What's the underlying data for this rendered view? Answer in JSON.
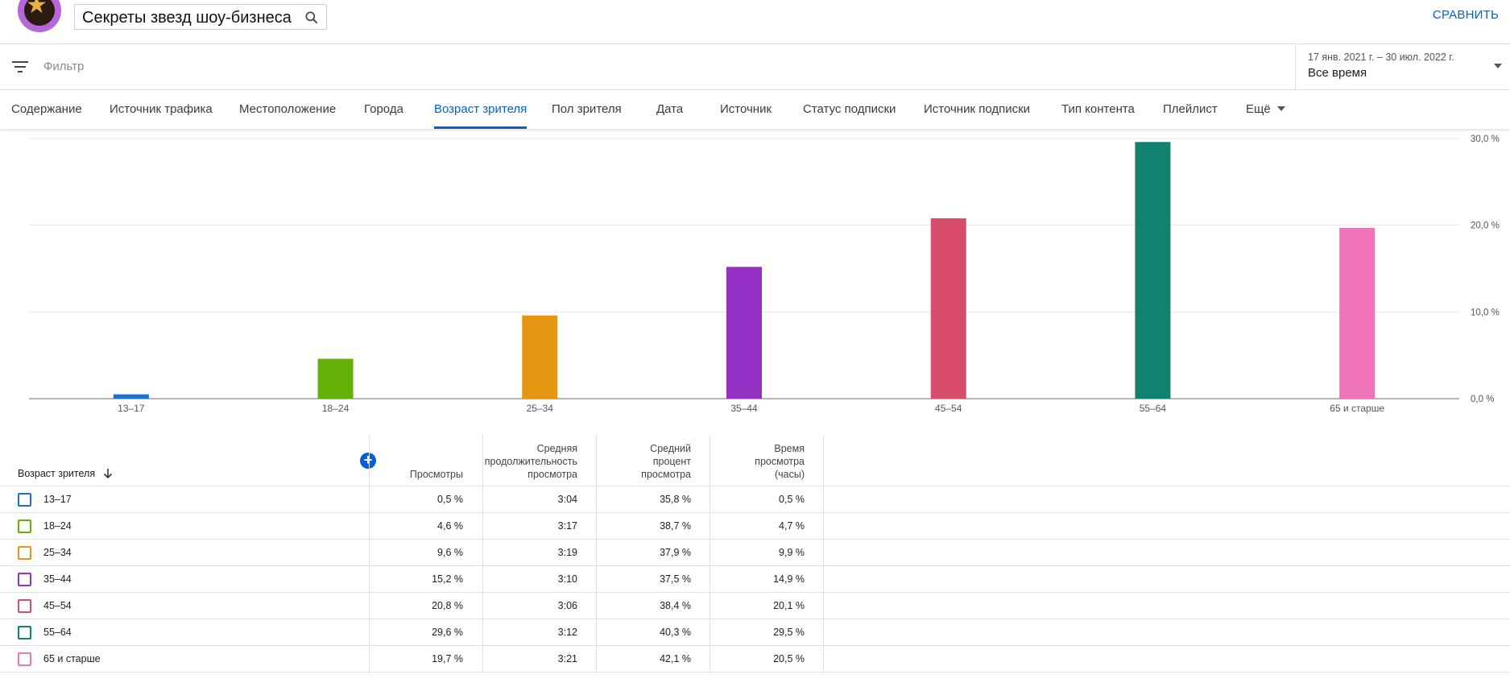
{
  "header": {
    "channel_name": "Секреты звезд шоу-бизнеса",
    "compare_label": "СРАВНИТЬ"
  },
  "filter": {
    "placeholder": "Фильтр",
    "date_range": "17 янв. 2021 г. – 30 июл. 2022 г.",
    "period": "Все время"
  },
  "tabs": [
    {
      "label": "Содержание"
    },
    {
      "label": "Источник трафика"
    },
    {
      "label": "Местоположение"
    },
    {
      "label": "Города"
    },
    {
      "label": "Возраст зрителя",
      "active": true
    },
    {
      "label": "Пол зрителя"
    },
    {
      "label": "Дата"
    },
    {
      "label": "Источник"
    },
    {
      "label": "Статус подписки"
    },
    {
      "label": "Источник подписки"
    },
    {
      "label": "Тип контента"
    },
    {
      "label": "Плейлист"
    },
    {
      "label": "Ещё"
    }
  ],
  "chart_data": {
    "type": "bar",
    "categories": [
      "13–17",
      "18–24",
      "25–34",
      "35–44",
      "45–54",
      "55–64",
      "65 и старше"
    ],
    "values": [
      0.5,
      4.6,
      9.6,
      15.2,
      20.8,
      29.6,
      19.7
    ],
    "colors": [
      "#1e6fd0",
      "#64b006",
      "#e59612",
      "#9431c4",
      "#d84c6e",
      "#128270",
      "#f173b9"
    ],
    "yticks": [
      "0,0 %",
      "10,0 %",
      "20,0 %",
      "30,0 %"
    ],
    "ylim": [
      0,
      30
    ],
    "grid": true
  },
  "table": {
    "dimension_header": "Возраст зрителя",
    "headers": [
      [
        "Просмотры"
      ],
      [
        "Средняя",
        "продолжительность",
        "просмотра"
      ],
      [
        "Средний",
        "процент",
        "просмотра"
      ],
      [
        "Время",
        "просмотра",
        "(часы)"
      ]
    ],
    "rows": [
      {
        "label": "13–17",
        "color": "#1e6fd0",
        "views": "0,5 %",
        "avg_duration": "3:04",
        "avg_percent": "35,8 %",
        "watch_time": "0,5 %"
      },
      {
        "label": "18–24",
        "color": "#64b006",
        "views": "4,6 %",
        "avg_duration": "3:17",
        "avg_percent": "38,7 %",
        "watch_time": "4,7 %"
      },
      {
        "label": "25–34",
        "color": "#e59612",
        "views": "9,6 %",
        "avg_duration": "3:19",
        "avg_percent": "37,9 %",
        "watch_time": "9,9 %"
      },
      {
        "label": "35–44",
        "color": "#9431c4",
        "views": "15,2 %",
        "avg_duration": "3:10",
        "avg_percent": "37,5 %",
        "watch_time": "14,9 %"
      },
      {
        "label": "45–54",
        "color": "#d84c6e",
        "views": "20,8 %",
        "avg_duration": "3:06",
        "avg_percent": "38,4 %",
        "watch_time": "20,1 %"
      },
      {
        "label": "55–64",
        "color": "#128270",
        "views": "29,6 %",
        "avg_duration": "3:12",
        "avg_percent": "40,3 %",
        "watch_time": "29,5 %"
      },
      {
        "label": "65 и старше",
        "color": "#f173b9",
        "views": "19,7 %",
        "avg_duration": "3:21",
        "avg_percent": "42,1 %",
        "watch_time": "20,5 %"
      }
    ]
  }
}
